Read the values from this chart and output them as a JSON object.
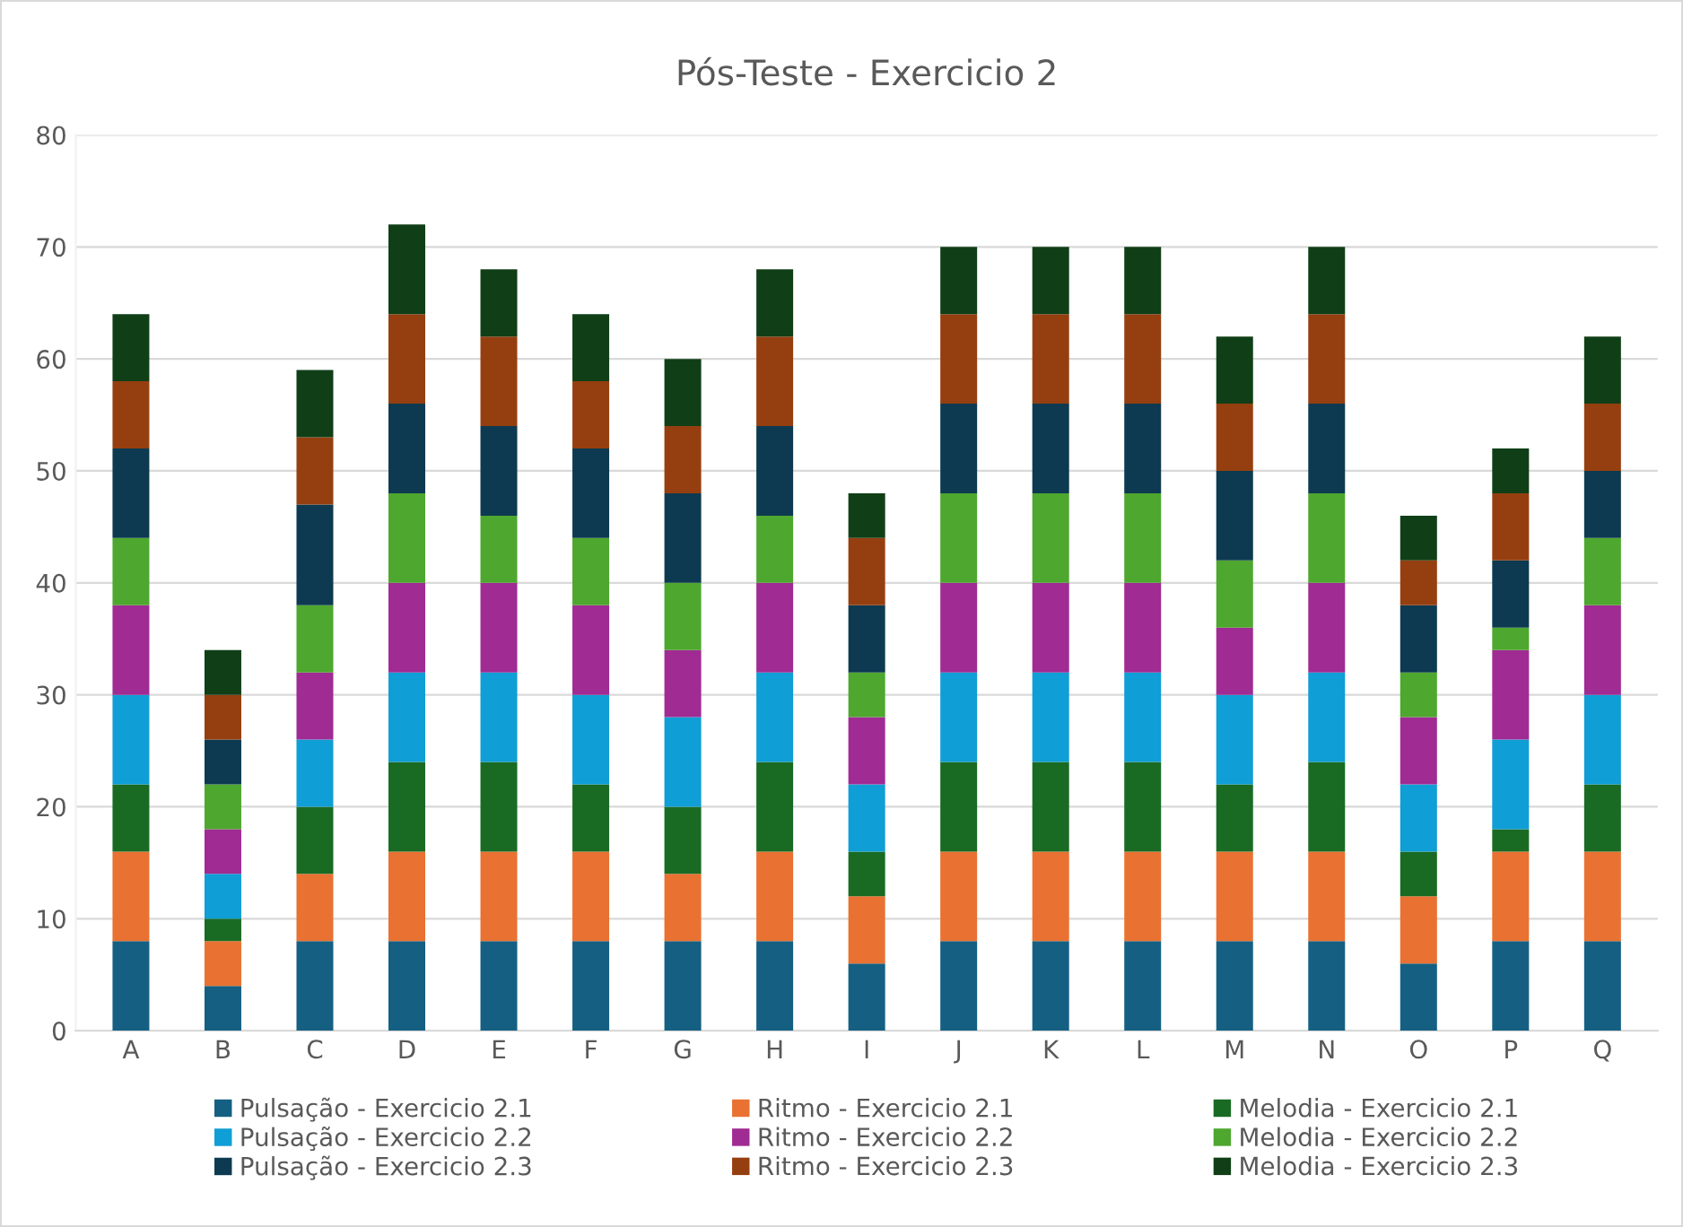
{
  "chart_data": {
    "type": "bar",
    "stacked": true,
    "title": "Pós-Teste - Exercicio 2",
    "categories": [
      "A",
      "B",
      "C",
      "D",
      "E",
      "F",
      "G",
      "H",
      "I",
      "J",
      "K",
      "L",
      "M",
      "N",
      "O",
      "P",
      "Q"
    ],
    "series": [
      {
        "name": "Pulsação - Exercicio 2.1",
        "color": "#156082",
        "values": [
          8,
          4,
          8,
          8,
          8,
          8,
          8,
          8,
          6,
          8,
          8,
          8,
          8,
          8,
          6,
          8,
          8
        ]
      },
      {
        "name": "Ritmo - Exercicio 2.1",
        "color": "#e97132",
        "values": [
          8,
          4,
          6,
          8,
          8,
          8,
          6,
          8,
          6,
          8,
          8,
          8,
          8,
          8,
          6,
          8,
          8
        ]
      },
      {
        "name": "Melodia - Exercicio 2.1",
        "color": "#196b24",
        "values": [
          6,
          2,
          6,
          8,
          8,
          6,
          6,
          8,
          4,
          8,
          8,
          8,
          6,
          8,
          4,
          2,
          6
        ]
      },
      {
        "name": "Pulsação - Exercicio 2.2",
        "color": "#0f9ed5",
        "values": [
          8,
          4,
          6,
          8,
          8,
          8,
          8,
          8,
          6,
          8,
          8,
          8,
          8,
          8,
          6,
          8,
          8
        ]
      },
      {
        "name": "Ritmo - Exercicio 2.2",
        "color": "#a02b93",
        "values": [
          8,
          4,
          6,
          8,
          8,
          8,
          6,
          8,
          6,
          8,
          8,
          8,
          6,
          8,
          6,
          8,
          8
        ]
      },
      {
        "name": "Melodia - Exercicio 2.2",
        "color": "#4ea72e",
        "values": [
          6,
          4,
          6,
          8,
          6,
          6,
          6,
          6,
          4,
          8,
          8,
          8,
          6,
          8,
          4,
          2,
          6
        ]
      },
      {
        "name": "Pulsação - Exercicio 2.3",
        "color": "#0d3a50",
        "values": [
          8,
          4,
          9,
          8,
          8,
          8,
          8,
          8,
          6,
          8,
          8,
          8,
          8,
          8,
          6,
          6,
          6
        ]
      },
      {
        "name": "Ritmo - Exercicio 2.3",
        "color": "#953f10",
        "values": [
          6,
          4,
          6,
          8,
          8,
          6,
          6,
          8,
          6,
          8,
          8,
          8,
          6,
          8,
          4,
          6,
          6
        ]
      },
      {
        "name": "Melodia - Exercicio 2.3",
        "color": "#103f17",
        "values": [
          6,
          4,
          6,
          8,
          6,
          6,
          6,
          6,
          4,
          6,
          6,
          6,
          6,
          6,
          4,
          4,
          6
        ]
      }
    ],
    "ylim": [
      0,
      80
    ],
    "yticks": [
      0,
      10,
      20,
      30,
      40,
      50,
      60,
      70,
      80
    ],
    "grid": "y",
    "legend": "bottom"
  }
}
